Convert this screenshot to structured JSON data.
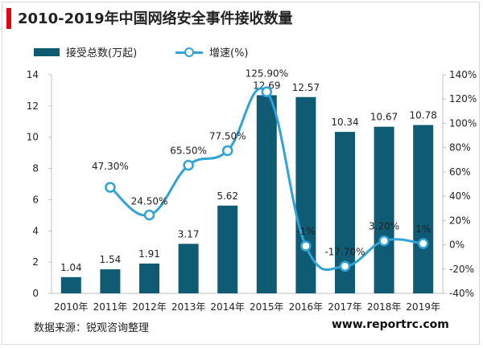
{
  "page": {
    "title": "2010-2019年中国网络安全事件接收数量",
    "source": "数据来源：锐观咨询整理",
    "website": "www.reportrc.com"
  },
  "colors": {
    "bar": "#0f5b73",
    "line": "#2fa3d8",
    "title_accent": "#e30613"
  },
  "chart_data": {
    "type": "bar",
    "title": "2010-2019年中国网络安全事件接收数量",
    "legend_position": "top",
    "grid": false,
    "categories": [
      "2010年",
      "2011年",
      "2012年",
      "2013年",
      "2014年",
      "2015年",
      "2016年",
      "2017年",
      "2018年",
      "2019年"
    ],
    "series": [
      {
        "name": "接受总数(万起)",
        "type": "bar",
        "axis": "left",
        "values": [
          1.04,
          1.54,
          1.91,
          3.17,
          5.62,
          12.69,
          12.57,
          10.34,
          10.67,
          10.78
        ],
        "labels": [
          "1.04",
          "1.54",
          "1.91",
          "3.17",
          "5.62",
          "12.69",
          "12.57",
          "10.34",
          "10.67",
          "10.78"
        ]
      },
      {
        "name": "增速(%)",
        "type": "line",
        "axis": "right",
        "values": [
          null,
          47.3,
          24.5,
          65.5,
          77.5,
          125.9,
          -1,
          -17.7,
          3.2,
          1
        ],
        "labels": [
          "",
          "47.30%",
          "24.50%",
          "65.50%",
          "77.50%",
          "125.90%",
          "-1%",
          "-17.70%",
          "3.20%",
          "1%"
        ]
      }
    ],
    "y_left": {
      "min": 0,
      "max": 14,
      "ticks": [
        "0",
        "2",
        "4",
        "6",
        "8",
        "10",
        "12",
        "14"
      ]
    },
    "y_right": {
      "min": -40,
      "max": 140,
      "ticks": [
        "-40%",
        "-20%",
        "0%",
        "20%",
        "40%",
        "60%",
        "80%",
        "100%",
        "120%",
        "140%"
      ]
    }
  }
}
